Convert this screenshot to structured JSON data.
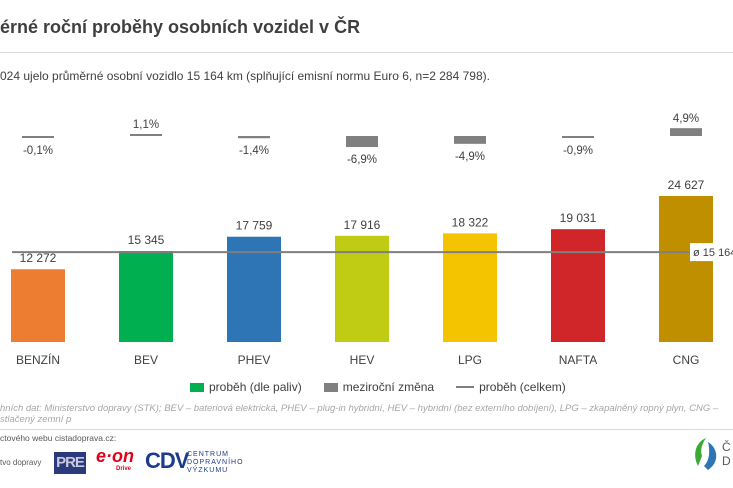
{
  "header": {
    "title": "érné roční proběhy osobních vozidel v ČR",
    "subtitle": "024 ujelo průměrné osobní vozidlo 15 164 km (splňující emisní normu Euro 6, n=2 284 798)."
  },
  "chart_data": {
    "type": "bar",
    "categories": [
      "BENZÍN",
      "BEV",
      "PHEV",
      "HEV",
      "LPG",
      "NAFTA",
      "CNG"
    ],
    "series": [
      {
        "name": "proběh (dle paliv)",
        "values": [
          12272,
          15345,
          17759,
          17916,
          18322,
          19031,
          24627
        ],
        "labels": [
          "12 272",
          "15 345",
          "17 759",
          "17 916",
          "18 322",
          "19 031",
          "24 627"
        ],
        "colors": [
          "#ed7d31",
          "#00b050",
          "#2e75b6",
          "#c0cc14",
          "#f5c400",
          "#d0262a",
          "#bf8f00"
        ]
      },
      {
        "name": "meziroční změna",
        "values": [
          -0.1,
          1.1,
          -1.4,
          -6.9,
          -4.9,
          -0.9,
          4.9
        ],
        "labels": [
          "-0,1%",
          "1,1%",
          "-1,4%",
          "-6,9%",
          "-4,9%",
          "-0,9%",
          "4,9%"
        ],
        "color": "#808080"
      },
      {
        "name": "proběh (celkem)",
        "value": 15164,
        "label": "ø 15 164",
        "color": "#7f7f7f"
      }
    ],
    "grid": false,
    "legend": "bottom"
  },
  "footer": {
    "note": "hních dat: Ministerstvo dopravy (STK); BEV – bateriová elektrická, PHEV – plug-in hybridní, HEV – hybridní (bez externího dobíjení), LPG – zkapalněný ropný plyn, CNG – stlačený zemní p",
    "partners": "ctového webu cistadoprava.cz:",
    "ministry": "tvo dopravy",
    "pre": "PRE",
    "eon": "e·on",
    "eon_sub": "Drive",
    "cdv": "CDV",
    "cdv_text": "CENTRUM DOPRAVNÍHO VÝZKUMU",
    "right_logo": "Č D"
  }
}
